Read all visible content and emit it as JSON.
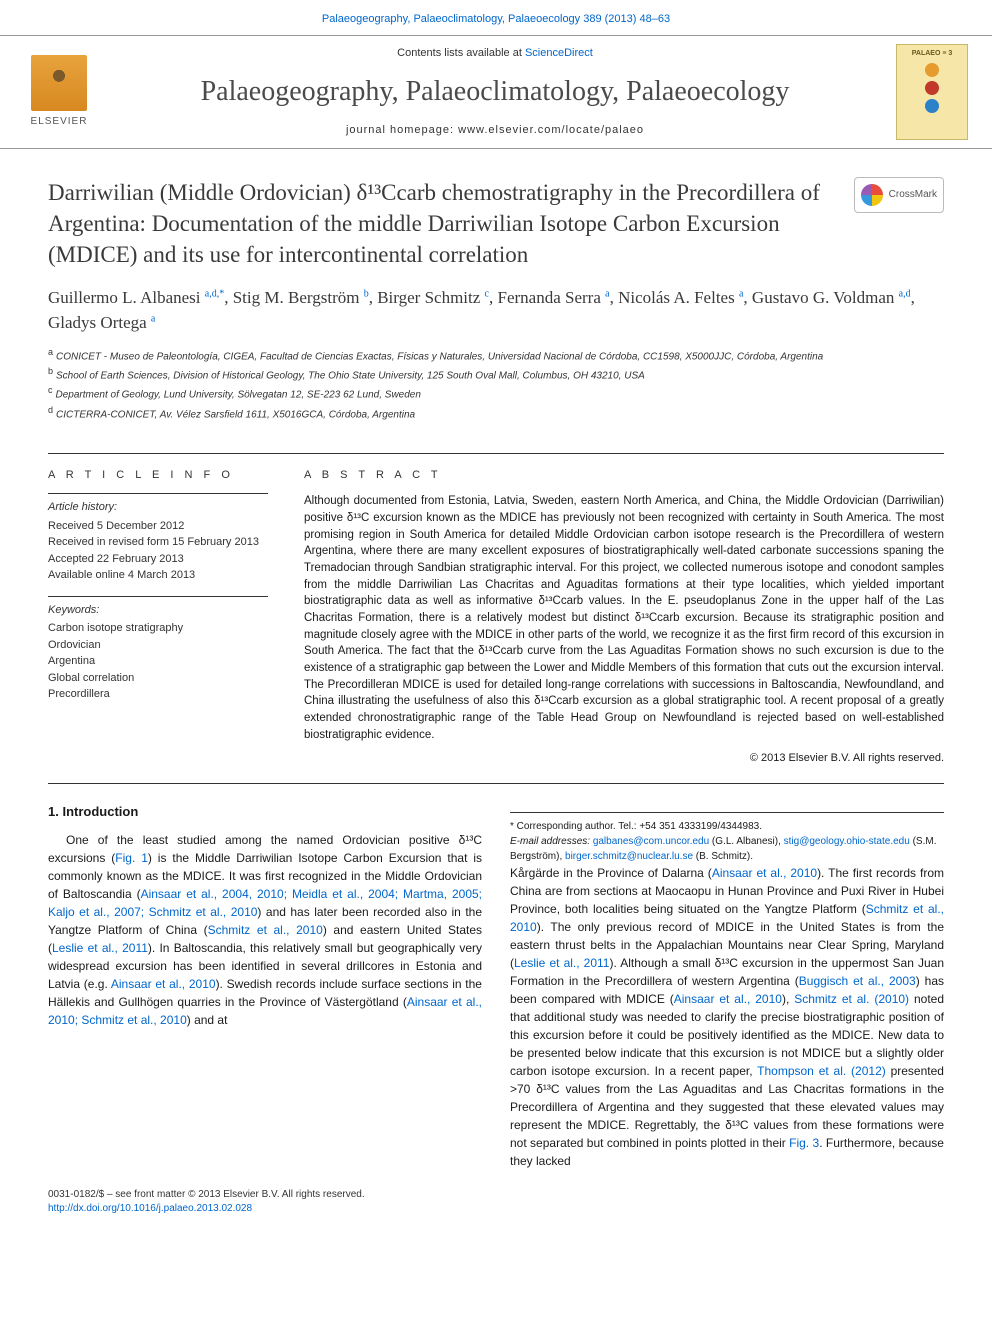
{
  "top_link": {
    "prefix": "Palaeogeography, Palaeoclimatology, Palaeoecology 389 (2013) 48–63",
    "color": "#0066cc"
  },
  "masthead": {
    "contents_prefix": "Contents lists available at ",
    "contents_link": "ScienceDirect",
    "journal_name": "Palaeogeography, Palaeoclimatology, Palaeoecology",
    "homepage_prefix": "journal homepage: ",
    "homepage_url": "www.elsevier.com/locate/palaeo",
    "elsevier_label": "ELSEVIER",
    "cover_label": "PALAEO ≡ 3",
    "dot_colors": [
      "#e59b2d",
      "#c1392b",
      "#2c82c9"
    ]
  },
  "crossmark_label": "CrossMark",
  "title": "Darriwilian (Middle Ordovician) δ¹³Ccarb chemostratigraphy in the Precordillera of Argentina: Documentation of the middle Darriwilian Isotope Carbon Excursion (MDICE) and its use for intercontinental correlation",
  "authors_html": "Guillermo L. Albanesi <sup>a,d,*</sup>, Stig M. Bergström <sup>b</sup>, Birger Schmitz <sup>c</sup>, Fernanda Serra <sup>a</sup>, Nicolás A. Feltes <sup>a</sup>, Gustavo G. Voldman <sup>a,d</sup>, Gladys Ortega <sup>a</sup>",
  "affiliations": [
    {
      "sup": "a",
      "text": "CONICET - Museo de Paleontología, CIGEA, Facultad de Ciencias Exactas, Físicas y Naturales, Universidad Nacional de Córdoba, CC1598, X5000JJC, Córdoba, Argentina"
    },
    {
      "sup": "b",
      "text": "School of Earth Sciences, Division of Historical Geology, The Ohio State University, 125 South Oval Mall, Columbus, OH 43210, USA"
    },
    {
      "sup": "c",
      "text": "Department of Geology, Lund University, Sölvegatan 12, SE-223 62 Lund, Sweden"
    },
    {
      "sup": "d",
      "text": "CICTERRA-CONICET, Av. Vélez Sarsfield 1611, X5016GCA, Córdoba, Argentina"
    }
  ],
  "article_info": {
    "heading": "A R T I C L E   I N F O",
    "history_label": "Article history:",
    "history": [
      "Received 5 December 2012",
      "Received in revised form 15 February 2013",
      "Accepted 22 February 2013",
      "Available online 4 March 2013"
    ],
    "keywords_label": "Keywords:",
    "keywords": [
      "Carbon isotope stratigraphy",
      "Ordovician",
      "Argentina",
      "Global correlation",
      "Precordillera"
    ]
  },
  "abstract": {
    "heading": "A B S T R A C T",
    "text": "Although documented from Estonia, Latvia, Sweden, eastern North America, and China, the Middle Ordovician (Darriwilian) positive δ¹³C excursion known as the MDICE has previously not been recognized with certainty in South America. The most promising region in South America for detailed Middle Ordovician carbon isotope research is the Precordillera of western Argentina, where there are many excellent exposures of biostratigraphically well-dated carbonate successions spaning the Tremadocian through Sandbian stratigraphic interval. For this project, we collected numerous isotope and conodont samples from the middle Darriwilian Las Chacritas and Aguaditas formations at their type localities, which yielded important biostratigraphic data as well as informative δ¹³Ccarb values. In the E. pseudoplanus Zone in the upper half of the Las Chacritas Formation, there is a relatively modest but distinct δ¹³Ccarb excursion. Because its stratigraphic position and magnitude closely agree with the MDICE in other parts of the world, we recognize it as the first firm record of this excursion in South America. The fact that the δ¹³Ccarb curve from the Las Aguaditas Formation shows no such excursion is due to the existence of a stratigraphic gap between the Lower and Middle Members of this formation that cuts out the excursion interval. The Precordilleran MDICE is used for detailed long-range correlations with successions in Baltoscandia, Newfoundland, and China illustrating the usefulness of also this δ¹³Ccarb excursion as a global stratigraphic tool. A recent proposal of a greatly extended chronostratigraphic range of the Table Head Group on Newfoundland is rejected based on well-established biostratigraphic evidence.",
    "copyright": "© 2013 Elsevier B.V. All rights reserved."
  },
  "intro": {
    "heading": "1. Introduction",
    "para1_pre": "One of the least studied among the named Ordovician positive δ¹³C excursions (",
    "fig1": "Fig. 1",
    "para1_mid1": ") is the Middle Darriwilian Isotope Carbon Excursion that is commonly known as the MDICE. It was first recognized in the Middle Ordovician of Baltoscandia (",
    "ref1": "Ainsaar et al., 2004, 2010; Meidla et al., 2004; Martma, 2005; Kaljo et al., 2007; Schmitz et al., 2010",
    "para1_mid2": ") and has later been recorded also in the Yangtze Platform of China (",
    "ref2": "Schmitz et al., 2010",
    "para1_mid3": ") and eastern United States (",
    "ref3": "Leslie et al., 2011",
    "para1_mid4": "). In Baltoscandia, this relatively small but geographically very widespread excursion has been identified in several drillcores in Estonia and Latvia (e.g. ",
    "ref4": "Ainsaar et al., 2010",
    "para1_mid5": "). Swedish records include surface sections in the Hällekis and Gullhögen quarries in the Province of Västergötland (",
    "ref5": "Ainsaar et al., 2010; Schmitz et al., 2010",
    "para1_end": ") and at",
    "para2_pre": "Kårgärde in the Province of Dalarna (",
    "ref6": "Ainsaar et al., 2010",
    "para2_mid1": "). The first records from China are from sections at Maocaopu in Hunan Province and Puxi River in Hubei Province, both localities being situated on the Yangtze Platform (",
    "ref7": "Schmitz et al., 2010",
    "para2_mid2": "). The only previous record of MDICE in the United States is from the eastern thrust belts in the Appalachian Mountains near Clear Spring, Maryland (",
    "ref8": "Leslie et al., 2011",
    "para2_mid3": "). Although a small δ¹³C excursion in the uppermost San Juan Formation in the Precordillera of western Argentina (",
    "ref9": "Buggisch et al., 2003",
    "para2_mid4": ") has been compared with MDICE (",
    "ref10": "Ainsaar et al., 2010",
    "para2_mid5": "), ",
    "ref11": "Schmitz et al. (2010)",
    "para2_mid6": " noted that additional study was needed to clarify the precise biostratigraphic position of this excursion before it could be positively identified as the MDICE. New data to be presented below indicate that this excursion is not MDICE but a slightly older carbon isotope excursion. In a recent paper, ",
    "ref12": "Thompson et al. (2012)",
    "para2_mid7": " presented >70 δ¹³C values from the Las Aguaditas and Las Chacritas formations in the Precordillera of Argentina and they suggested that these elevated values may represent the MDICE. Regrettably, the δ¹³C values from these formations were not separated but combined in points plotted in their ",
    "fig3": "Fig. 3",
    "para2_end": ". Furthermore, because they lacked"
  },
  "footnotes": {
    "corr_label": "* Corresponding author. Tel.: ",
    "corr_tel": "+54 351 4333199/4344983.",
    "email_label": "E-mail addresses: ",
    "emails": [
      {
        "addr": "galbanes@com.uncor.edu",
        "who": " (G.L. Albanesi), "
      },
      {
        "addr": "stig@geology.ohio-state.edu",
        "who": " (S.M. Bergström), "
      },
      {
        "addr": "birger.schmitz@nuclear.lu.se",
        "who": " (B. Schmitz)."
      }
    ]
  },
  "bottom": {
    "line1": "0031-0182/$ – see front matter © 2013 Elsevier B.V. All rights reserved.",
    "doi": "http://dx.doi.org/10.1016/j.palaeo.2013.02.028"
  },
  "style": {
    "link_color": "#0066cc",
    "body_font_size": 12,
    "abstract_font_size": 11.5,
    "title_font_size": 23,
    "journal_font_size": 28,
    "background": "#ffffff",
    "text_color": "#1a1a1a",
    "rule_color": "#333333"
  }
}
